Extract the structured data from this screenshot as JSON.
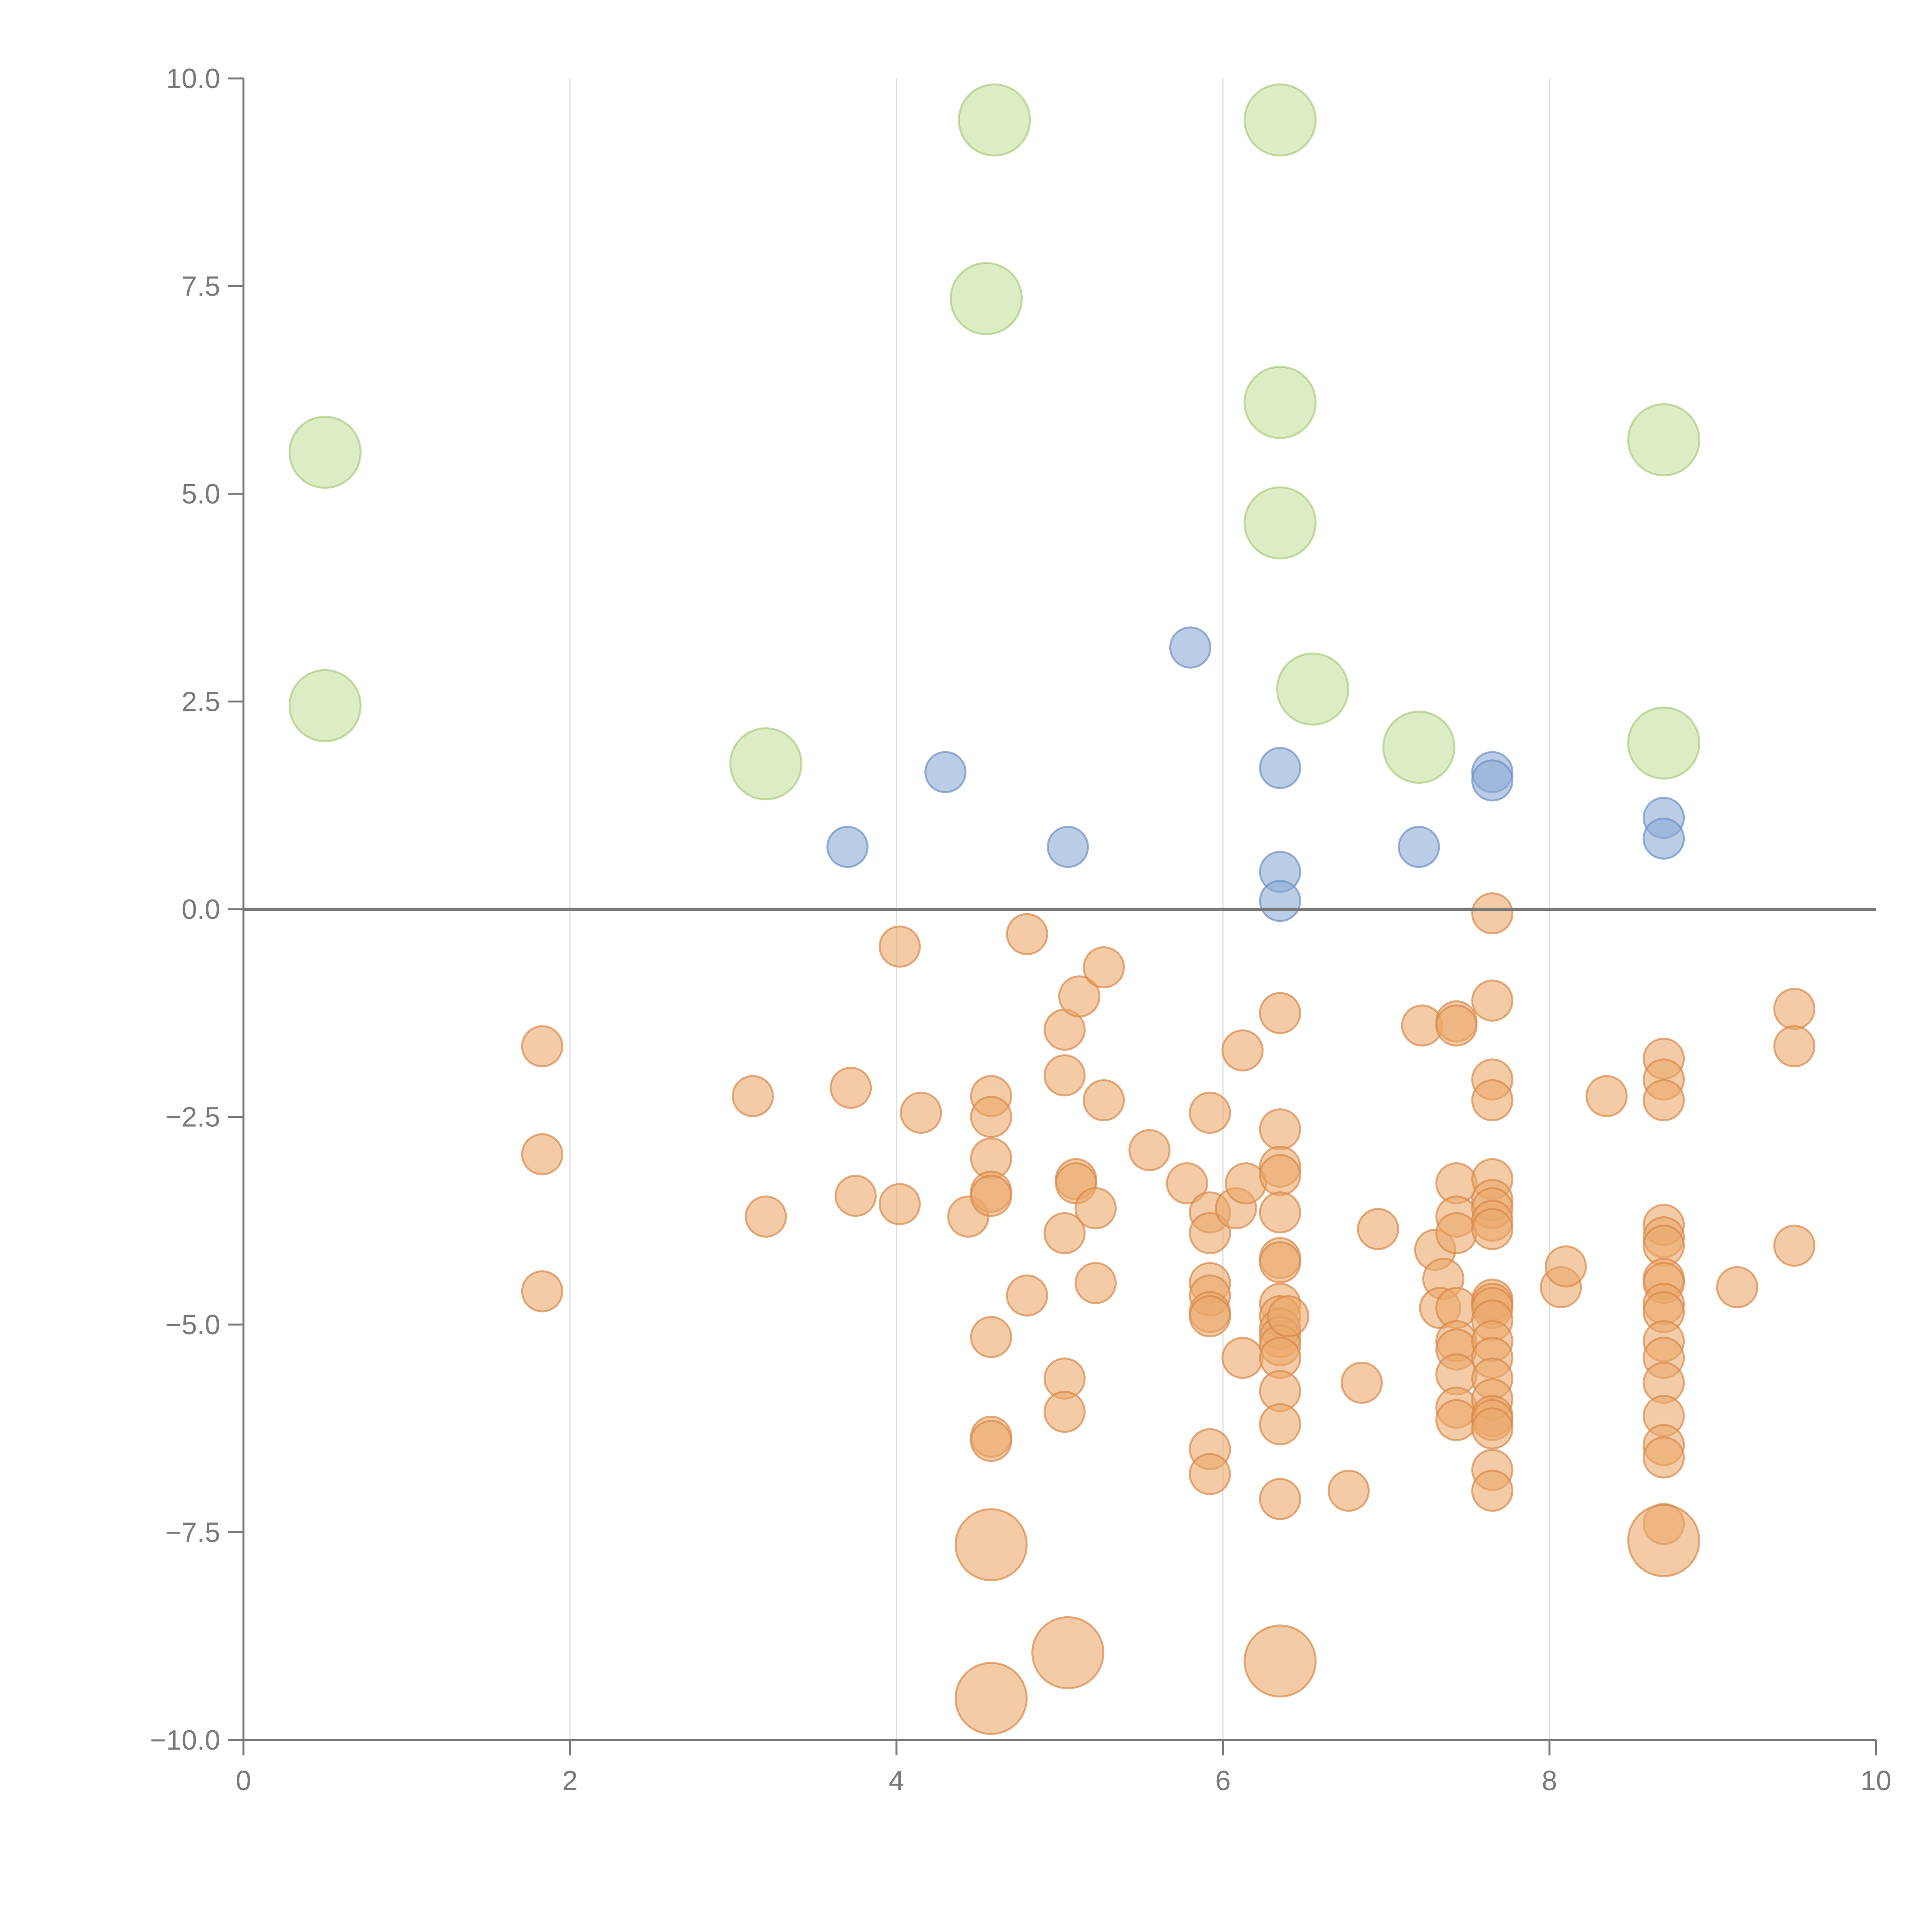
{
  "chart_data": {
    "type": "scatter",
    "title": "",
    "xlabel": "",
    "ylabel": "",
    "xlim": [
      0,
      10
    ],
    "ylim": [
      -10,
      10
    ],
    "x_ticks": [
      "0",
      "2",
      "4",
      "6",
      "8",
      "10"
    ],
    "y_ticks": [
      "10.0",
      "7.5",
      "5.0",
      "2.5",
      "0.0",
      "−2.5",
      "−5.0",
      "−7.5",
      "−10.0"
    ],
    "x_tick_values": [
      0,
      2,
      4,
      6,
      8,
      10
    ],
    "y_tick_values": [
      10,
      7.5,
      5,
      2.5,
      0,
      -2.5,
      -5,
      -7.5,
      -10
    ],
    "grid": "vertical",
    "reference_line_y": 0,
    "series": [
      {
        "name": "green",
        "color": "#c5df9f",
        "stroke": "#a9cc7c",
        "size": "large",
        "points": [
          [
            0.5,
            5.5
          ],
          [
            0.5,
            2.45
          ],
          [
            3.2,
            1.75
          ],
          [
            4.6,
            9.5
          ],
          [
            4.55,
            7.35
          ],
          [
            6.35,
            9.5
          ],
          [
            6.35,
            6.1
          ],
          [
            6.35,
            4.65
          ],
          [
            6.55,
            2.65
          ],
          [
            7.2,
            1.95
          ],
          [
            8.7,
            5.65
          ],
          [
            8.7,
            2.0
          ]
        ]
      },
      {
        "name": "blue",
        "color": "#8eaad6",
        "stroke": "#6f90c4",
        "size": "small",
        "points": [
          [
            5.8,
            3.15
          ],
          [
            4.3,
            1.65
          ],
          [
            3.7,
            0.75
          ],
          [
            5.05,
            0.75
          ],
          [
            6.35,
            1.7
          ],
          [
            6.35,
            0.45
          ],
          [
            6.35,
            0.1
          ],
          [
            7.2,
            0.75
          ],
          [
            7.65,
            1.65
          ],
          [
            7.65,
            1.55
          ],
          [
            8.7,
            1.1
          ],
          [
            8.7,
            0.85
          ]
        ]
      },
      {
        "name": "orange",
        "color": "#eba86a",
        "stroke": "#d9894a",
        "size": "small",
        "points": [
          [
            1.83,
            -1.65
          ],
          [
            1.83,
            -2.95
          ],
          [
            1.83,
            -4.6
          ],
          [
            3.12,
            -2.25
          ],
          [
            3.2,
            -3.7
          ],
          [
            3.72,
            -2.15
          ],
          [
            3.75,
            -3.45
          ],
          [
            4.02,
            -0.45
          ],
          [
            4.02,
            -3.55
          ],
          [
            4.15,
            -2.45
          ],
          [
            4.44,
            -3.7
          ],
          [
            4.58,
            -2.25
          ],
          [
            4.58,
            -2.5
          ],
          [
            4.58,
            -3.0
          ],
          [
            4.58,
            -3.4
          ],
          [
            4.58,
            -3.45
          ],
          [
            4.58,
            -5.15
          ],
          [
            4.58,
            -6.35
          ],
          [
            4.58,
            -6.4
          ],
          [
            4.8,
            -0.3
          ],
          [
            4.8,
            -4.65
          ],
          [
            5.03,
            -1.45
          ],
          [
            5.03,
            -2.0
          ],
          [
            5.03,
            -3.9
          ],
          [
            5.03,
            -5.65
          ],
          [
            5.03,
            -6.05
          ],
          [
            5.12,
            -1.05
          ],
          [
            5.1,
            -3.25
          ],
          [
            5.1,
            -3.3
          ],
          [
            5.22,
            -3.6
          ],
          [
            5.22,
            -4.5
          ],
          [
            5.27,
            -0.7
          ],
          [
            5.27,
            -2.3
          ],
          [
            5.55,
            -2.9
          ],
          [
            5.78,
            -3.3
          ],
          [
            5.92,
            -2.45
          ],
          [
            5.92,
            -3.65
          ],
          [
            5.92,
            -3.9
          ],
          [
            5.92,
            -4.5
          ],
          [
            5.92,
            -4.65
          ],
          [
            5.92,
            -4.85
          ],
          [
            5.92,
            -4.9
          ],
          [
            5.92,
            -6.5
          ],
          [
            5.92,
            -6.8
          ],
          [
            6.08,
            -3.6
          ],
          [
            6.12,
            -1.7
          ],
          [
            6.14,
            -3.3
          ],
          [
            6.12,
            -5.4
          ],
          [
            6.35,
            -1.25
          ],
          [
            6.35,
            -2.65
          ],
          [
            6.35,
            -3.1
          ],
          [
            6.35,
            -3.2
          ],
          [
            6.35,
            -3.65
          ],
          [
            6.35,
            -4.2
          ],
          [
            6.35,
            -4.25
          ],
          [
            6.35,
            -4.75
          ],
          [
            6.35,
            -4.9
          ],
          [
            6.35,
            -5.05
          ],
          [
            6.35,
            -5.15
          ],
          [
            6.35,
            -5.25
          ],
          [
            6.35,
            -5.4
          ],
          [
            6.35,
            -5.8
          ],
          [
            6.35,
            -6.2
          ],
          [
            6.35,
            -7.1
          ],
          [
            6.4,
            -4.9
          ],
          [
            6.77,
            -7.0
          ],
          [
            6.85,
            -5.7
          ],
          [
            6.95,
            -3.85
          ],
          [
            7.22,
            -1.4
          ],
          [
            7.3,
            -4.1
          ],
          [
            7.35,
            -4.45
          ],
          [
            7.33,
            -4.8
          ],
          [
            7.43,
            -1.35
          ],
          [
            7.43,
            -1.4
          ],
          [
            7.43,
            -3.3
          ],
          [
            7.43,
            -3.7
          ],
          [
            7.43,
            -3.9
          ],
          [
            7.43,
            -4.8
          ],
          [
            7.43,
            -5.2
          ],
          [
            7.43,
            -5.3
          ],
          [
            7.43,
            -5.6
          ],
          [
            7.43,
            -6.0
          ],
          [
            7.43,
            -6.15
          ],
          [
            7.65,
            -0.05
          ],
          [
            7.65,
            -1.1
          ],
          [
            7.65,
            -2.05
          ],
          [
            7.65,
            -2.3
          ],
          [
            7.65,
            -3.25
          ],
          [
            7.65,
            -3.5
          ],
          [
            7.65,
            -3.6
          ],
          [
            7.65,
            -3.75
          ],
          [
            7.65,
            -3.85
          ],
          [
            7.65,
            -4.7
          ],
          [
            7.65,
            -4.75
          ],
          [
            7.65,
            -4.8
          ],
          [
            7.65,
            -4.95
          ],
          [
            7.65,
            -5.2
          ],
          [
            7.65,
            -5.4
          ],
          [
            7.65,
            -5.65
          ],
          [
            7.65,
            -5.9
          ],
          [
            7.65,
            -6.1
          ],
          [
            7.65,
            -6.15
          ],
          [
            7.65,
            -6.25
          ],
          [
            7.65,
            -6.75
          ],
          [
            7.65,
            -7.0
          ],
          [
            8.07,
            -4.55
          ],
          [
            8.1,
            -4.3
          ],
          [
            8.35,
            -2.25
          ],
          [
            8.7,
            -1.8
          ],
          [
            8.7,
            -2.05
          ],
          [
            8.7,
            -2.3
          ],
          [
            8.7,
            -3.8
          ],
          [
            8.7,
            -3.95
          ],
          [
            8.7,
            -4.05
          ],
          [
            8.7,
            -4.45
          ],
          [
            8.7,
            -4.5
          ],
          [
            8.7,
            -4.75
          ],
          [
            8.7,
            -4.85
          ],
          [
            8.7,
            -5.2
          ],
          [
            8.7,
            -5.4
          ],
          [
            8.7,
            -5.7
          ],
          [
            8.7,
            -6.1
          ],
          [
            8.7,
            -6.45
          ],
          [
            8.7,
            -6.6
          ],
          [
            8.7,
            -7.4
          ],
          [
            9.15,
            -4.55
          ],
          [
            9.5,
            -1.2
          ],
          [
            9.5,
            -1.65
          ],
          [
            9.5,
            -4.05
          ]
        ],
        "large_points": [
          [
            4.58,
            -7.65
          ],
          [
            5.05,
            -8.95
          ],
          [
            4.58,
            -9.5
          ],
          [
            6.35,
            -9.05
          ],
          [
            8.7,
            -7.6
          ]
        ]
      }
    ]
  }
}
